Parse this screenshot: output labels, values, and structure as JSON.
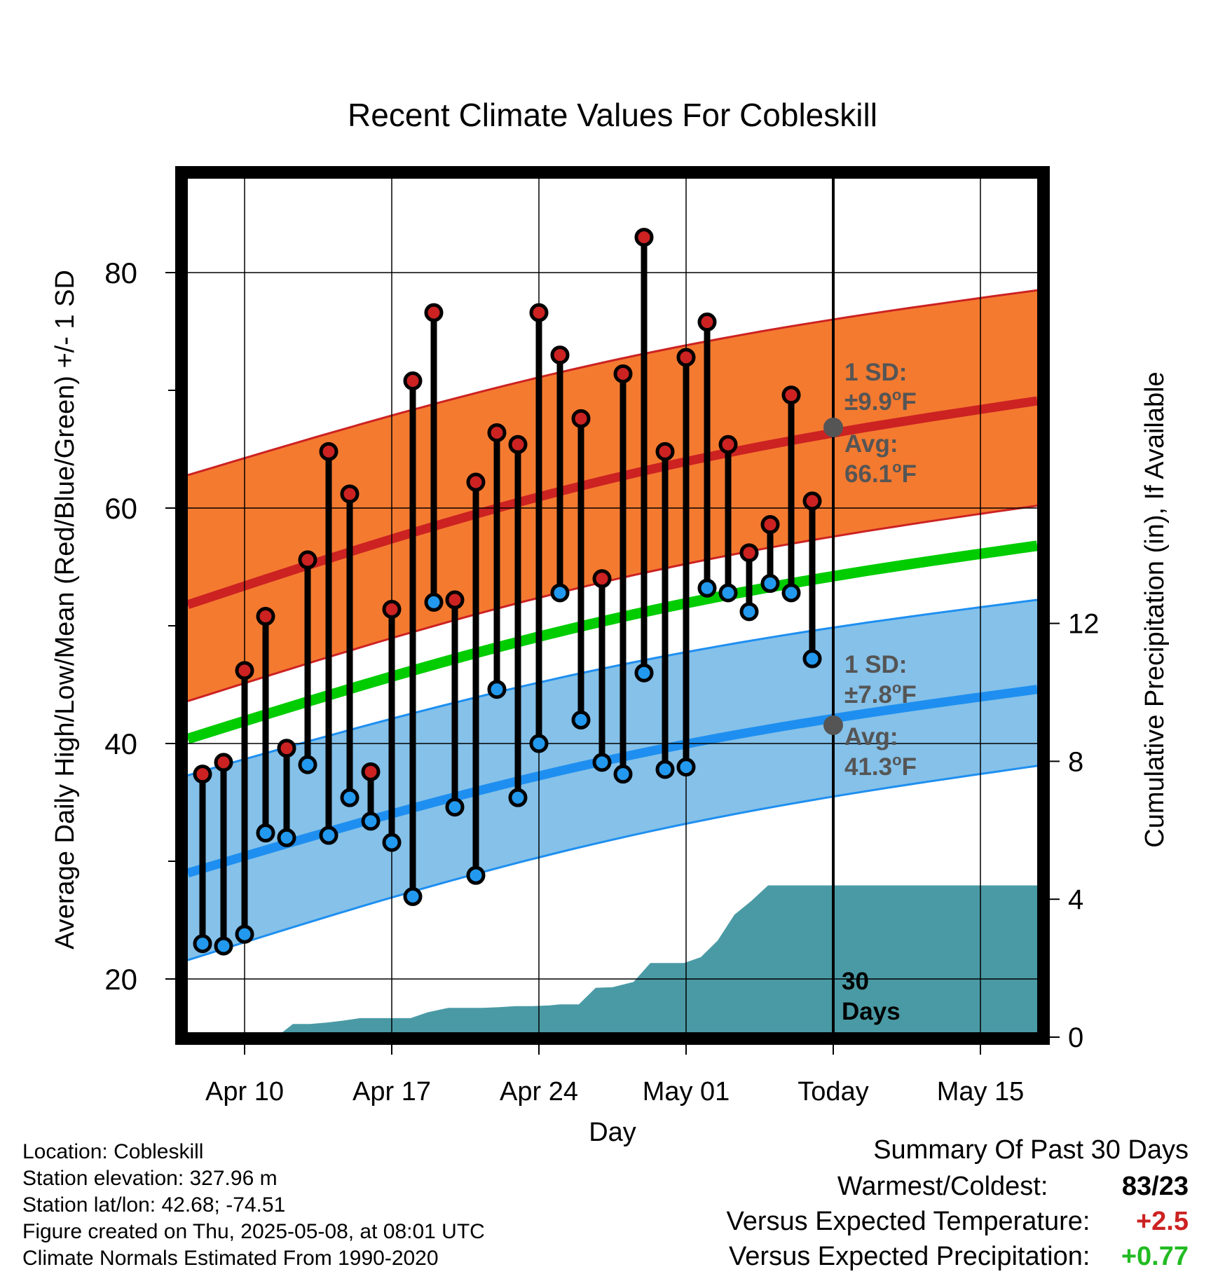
{
  "chart_data": {
    "type": "line",
    "title": "Recent Climate Values For Cobleskill",
    "xlabel": "Day",
    "ylabel_left": "Average Daily High/Low/Mean (Red/Blue/Green) +/- 1 SD",
    "ylabel_right": "Cumulative Precipitation (in), If Available",
    "x_ticks": [
      {
        "day": 0,
        "label": "Apr 10"
      },
      {
        "day": 7,
        "label": "Apr 17"
      },
      {
        "day": 14,
        "label": "Apr 24"
      },
      {
        "day": 21,
        "label": "May 01"
      },
      {
        "day": 28,
        "label": "Today"
      },
      {
        "day": 35,
        "label": "May 15"
      }
    ],
    "x_range": [
      -2.7,
      37.7
    ],
    "ylim_left": [
      15.5,
      88
    ],
    "y_ticks_left": [
      20,
      40,
      60,
      80
    ],
    "y_minor_ticks_left": [
      30,
      50,
      70
    ],
    "y_ticks_right": [
      0,
      4,
      8,
      12
    ],
    "ylim_right": [
      0,
      17.24
    ],
    "today_day": 28,
    "normals": {
      "days": [
        -2.7,
        37.7
      ],
      "high_mean": [
        51.8,
        69.1
      ],
      "high_upper": [
        62.8,
        78.5
      ],
      "high_lower": [
        43.6,
        60.2
      ],
      "mean": [
        40.4,
        56.8
      ],
      "low_mean": [
        29.0,
        44.6
      ],
      "low_upper": [
        37.3,
        52.2
      ],
      "low_lower": [
        21.6,
        38.1
      ]
    },
    "series": [
      {
        "name": "High",
        "color": "#cc2222",
        "x": [
          -2,
          -1,
          0,
          1,
          2,
          3,
          4,
          5,
          6,
          7,
          8,
          9,
          10,
          11,
          12,
          13,
          14,
          15,
          16,
          17,
          18,
          19,
          20,
          21,
          22,
          23,
          24,
          25,
          26,
          27
        ],
        "values": [
          37.4,
          38.4,
          46.2,
          50.8,
          39.6,
          55.6,
          64.8,
          61.2,
          37.6,
          51.4,
          70.8,
          76.6,
          52.2,
          62.2,
          66.4,
          65.4,
          76.6,
          73.0,
          67.6,
          54.0,
          71.4,
          83.0,
          64.8,
          72.8,
          75.8,
          65.4,
          56.2,
          58.6,
          69.6,
          60.6
        ]
      },
      {
        "name": "Low",
        "color": "#2299ee",
        "x": [
          -2,
          -1,
          0,
          1,
          2,
          3,
          4,
          5,
          6,
          7,
          8,
          9,
          10,
          11,
          12,
          13,
          14,
          15,
          16,
          17,
          18,
          19,
          20,
          21,
          22,
          23,
          24,
          25,
          26,
          27
        ],
        "values": [
          23.0,
          22.8,
          23.8,
          32.4,
          32.0,
          38.2,
          32.2,
          35.4,
          33.4,
          31.6,
          27.0,
          52.0,
          34.6,
          28.8,
          44.6,
          35.4,
          40.0,
          52.8,
          42.0,
          38.4,
          37.4,
          46.0,
          37.8,
          38.0,
          53.2,
          52.8,
          51.2,
          53.6,
          52.8,
          47.2
        ]
      },
      {
        "name": "Cumulative Precipitation",
        "color": "#4a9aa5",
        "x": [
          -2.7,
          1.5,
          2.3,
          3.1,
          3.9,
          4.7,
          5.5,
          6.3,
          7,
          7.9,
          8.7,
          9.7,
          10.5,
          11.3,
          12.1,
          12.9,
          13.7,
          14.5,
          15,
          15.9,
          16.7,
          17.5,
          18.5,
          19.3,
          20.1,
          20.9,
          21.7,
          22.5,
          23.3,
          24.1,
          24.9,
          25.7,
          26.5,
          37.7
        ],
        "values": [
          0,
          0,
          0.38,
          0.38,
          0.42,
          0.48,
          0.55,
          0.55,
          0.55,
          0.55,
          0.72,
          0.85,
          0.85,
          0.85,
          0.87,
          0.9,
          0.9,
          0.92,
          0.95,
          0.95,
          1.43,
          1.45,
          1.6,
          2.15,
          2.15,
          2.15,
          2.32,
          2.8,
          3.55,
          3.95,
          4.4,
          4.4,
          4.4,
          4.4
        ]
      }
    ],
    "annotations": {
      "high_sd_label": "1 SD:",
      "high_sd_value": "±9.9",
      "high_avg_label": "Avg:",
      "high_avg_value": "66.1",
      "low_sd_label": "1 SD:",
      "low_sd_value": "±7.8",
      "low_avg_label": "Avg:",
      "low_avg_value": "41.3",
      "degree_unit": "o",
      "f_unit": "F",
      "days_count": "30",
      "days_label": "Days"
    },
    "colors": {
      "high_band": "#f47a30",
      "high_line": "#cc2222",
      "low_band": "#85c1e9",
      "low_line": "#1e8ff0",
      "mean_line": "#00cc00",
      "precip": "#4a9aa5",
      "annotation": "#555555"
    }
  },
  "info": {
    "location": "Location: Cobleskill",
    "elevation": "Station elevation: 327.96 m",
    "latlon": "Station lat/lon: 42.68; -74.51",
    "created": "Figure created on Thu, 2025-05-08, at 08:01 UTC",
    "normals": "Climate Normals Estimated From 1990-2020"
  },
  "summary": {
    "title": "Summary Of Past 30 Days",
    "warm_label": "Warmest/Coldest:",
    "warm_value": "83/23",
    "temp_label": "Versus Expected Temperature:",
    "temp_value": "+2.5",
    "temp_color": "#cc2222",
    "precip_label": "Versus Expected Precipitation:",
    "precip_value": "+0.77",
    "precip_color": "#22bb22"
  }
}
